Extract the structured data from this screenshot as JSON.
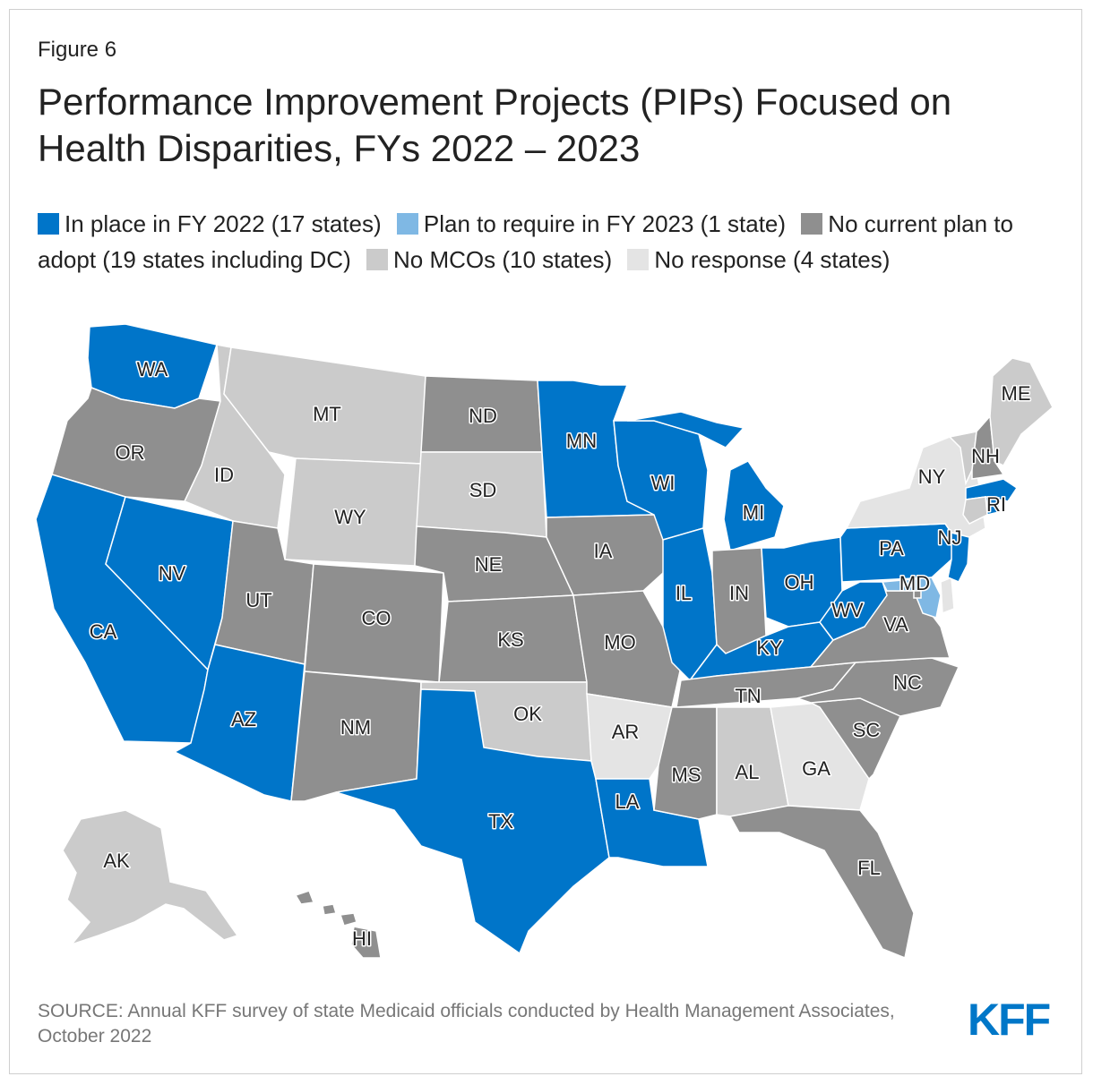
{
  "figure_label": "Figure 6",
  "title": "Performance Improvement Projects (PIPs) Focused on Health Disparities, FYs 2022 – 2023",
  "colors": {
    "in_place": "#0075c9",
    "plan": "#7fb8e4",
    "no_plan": "#8f8f8f",
    "no_mco": "#cbcbcb",
    "no_response": "#e4e4e4"
  },
  "legend": [
    {
      "key": "in_place",
      "label": "In place in FY 2022 (17 states)"
    },
    {
      "key": "plan",
      "label": "Plan to require in FY 2023 (1 state)"
    },
    {
      "key": "no_plan",
      "label": "No current plan to adopt (19 states including DC)"
    },
    {
      "key": "no_mco",
      "label": "No MCOs (10 states)"
    },
    {
      "key": "no_response",
      "label": "No response (4 states)"
    }
  ],
  "states": {
    "WA": "in_place",
    "OR": "no_plan",
    "CA": "in_place",
    "NV": "in_place",
    "ID": "no_mco",
    "MT": "no_mco",
    "WY": "no_mco",
    "UT": "no_plan",
    "AZ": "in_place",
    "CO": "no_plan",
    "NM": "no_plan",
    "ND": "no_plan",
    "SD": "no_mco",
    "NE": "no_plan",
    "KS": "no_plan",
    "OK": "no_mco",
    "TX": "in_place",
    "MN": "in_place",
    "IA": "no_plan",
    "MO": "no_plan",
    "AR": "no_response",
    "LA": "in_place",
    "WI": "in_place",
    "IL": "in_place",
    "MI": "in_place",
    "IN": "no_plan",
    "OH": "in_place",
    "KY": "in_place",
    "TN": "no_plan",
    "MS": "no_plan",
    "AL": "no_mco",
    "GA": "no_response",
    "FL": "no_plan",
    "SC": "no_plan",
    "NC": "no_plan",
    "VA": "no_plan",
    "WV": "in_place",
    "MD": "plan",
    "PA": "in_place",
    "NJ": "in_place",
    "NY": "no_response",
    "NH": "no_plan",
    "ME": "no_mco",
    "RI": "in_place",
    "MA": "in_place",
    "VT": "no_mco",
    "CT": "no_mco",
    "DE": "no_response",
    "DC": "no_plan",
    "AK": "no_mco",
    "HI": "no_plan"
  },
  "source": "SOURCE: Annual KFF survey of state Medicaid officials conducted by Health Management Associates, October 2022",
  "logo": "KFF"
}
